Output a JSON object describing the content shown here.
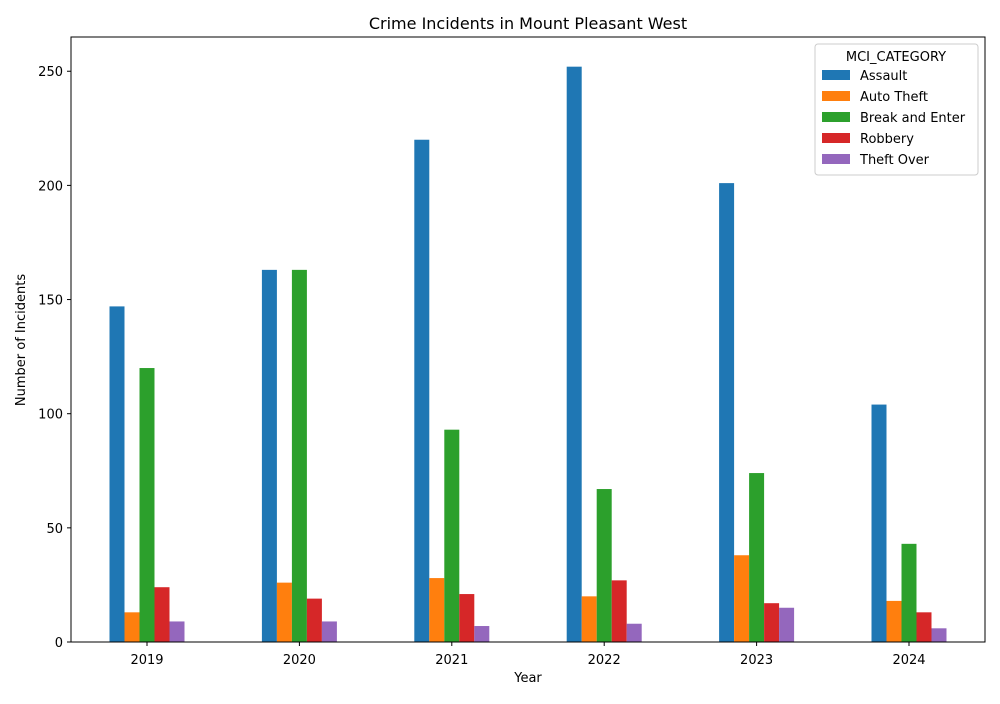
{
  "chart_data": {
    "type": "bar",
    "title": "Crime Incidents in Mount Pleasant West",
    "xlabel": "Year",
    "ylabel": "Number of Incidents",
    "categories": [
      "2019",
      "2020",
      "2021",
      "2022",
      "2023",
      "2024"
    ],
    "ylim": [
      0,
      265
    ],
    "yticks": [
      0,
      50,
      100,
      150,
      200,
      250
    ],
    "grid": false,
    "legend": {
      "title": "MCI_CATEGORY",
      "placement": "top-right"
    },
    "series": [
      {
        "name": "Assault",
        "color": "#1f77b4",
        "values": [
          147,
          163,
          220,
          252,
          201,
          104
        ]
      },
      {
        "name": "Auto Theft",
        "color": "#ff7f0e",
        "values": [
          13,
          26,
          28,
          20,
          38,
          18
        ]
      },
      {
        "name": "Break and Enter",
        "color": "#2ca02c",
        "values": [
          120,
          163,
          93,
          67,
          74,
          43
        ]
      },
      {
        "name": "Robbery",
        "color": "#d62728",
        "values": [
          24,
          19,
          21,
          27,
          17,
          13
        ]
      },
      {
        "name": "Theft Over",
        "color": "#9467bd",
        "values": [
          9,
          9,
          7,
          8,
          15,
          6
        ]
      }
    ]
  }
}
